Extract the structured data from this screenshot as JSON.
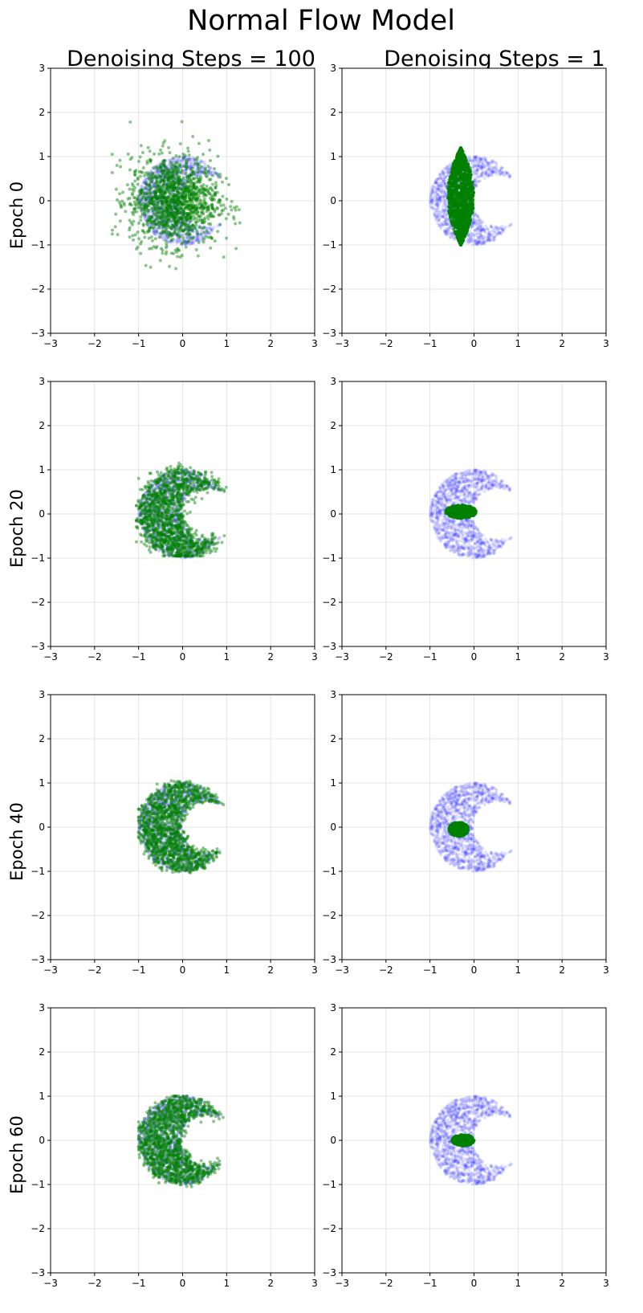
{
  "figure": {
    "title": "Normal Flow Model",
    "column_titles": [
      "Denoising Steps = 100",
      "Denoising Steps = 1"
    ],
    "row_labels": [
      "Epoch 0",
      "Epoch 20",
      "Epoch 40",
      "Epoch 60"
    ]
  },
  "colors": {
    "target": "#0000ff",
    "generated": "#008000",
    "grid": "#dddddd",
    "axes": "#000000"
  },
  "chart_data": {
    "type": "scatter",
    "layout": "4x2 grid of scatter subplots",
    "grid": true,
    "xlim": [
      -3,
      3
    ],
    "ylim": [
      -3,
      3
    ],
    "x_ticks": [
      -3,
      -2,
      -1,
      0,
      1,
      2,
      3
    ],
    "y_ticks": [
      -3,
      -2,
      -1,
      0,
      1,
      2,
      3
    ],
    "target_distribution": {
      "shape": "crescent",
      "outer_circle": {
        "cx": 0,
        "cy": 0,
        "r": 1.0
      },
      "inner_circle": {
        "cx": 0.55,
        "cy": 0,
        "r": 0.58
      },
      "x_range": [
        -1.0,
        0.85
      ],
      "y_range": [
        -1.0,
        1.0
      ]
    },
    "panels": [
      {
        "row": 0,
        "col": 0,
        "epoch": 0,
        "denoising_steps": 100,
        "generated": {
          "shape": "gaussian",
          "mean": [
            -0.2,
            0.0
          ],
          "std": [
            0.5,
            0.5
          ],
          "x_range": [
            -1.6,
            1.3
          ],
          "y_range": [
            -1.9,
            1.9
          ]
        }
      },
      {
        "row": 0,
        "col": 1,
        "epoch": 0,
        "denoising_steps": 1,
        "generated": {
          "shape": "leaf",
          "center": [
            -0.3,
            0.1
          ],
          "half_width": 0.3,
          "half_height": 1.1,
          "x_range": [
            -0.75,
            0.05
          ],
          "y_range": [
            -1.0,
            1.25
          ]
        }
      },
      {
        "row": 1,
        "col": 0,
        "epoch": 20,
        "denoising_steps": 100,
        "generated": {
          "shape": "crescent",
          "jitter": 0.09,
          "x_range": [
            -1.05,
            1.05
          ],
          "y_range": [
            -0.95,
            1.15
          ]
        }
      },
      {
        "row": 1,
        "col": 1,
        "epoch": 20,
        "denoising_steps": 1,
        "generated": {
          "shape": "blob",
          "center": [
            -0.3,
            0.05
          ],
          "radius_x": 0.35,
          "radius_y": 0.15,
          "x_range": [
            -0.5,
            0.2
          ],
          "y_range": [
            -0.15,
            0.25
          ]
        }
      },
      {
        "row": 2,
        "col": 0,
        "epoch": 40,
        "denoising_steps": 100,
        "generated": {
          "shape": "crescent",
          "jitter": 0.06,
          "x_range": [
            -1.0,
            0.95
          ],
          "y_range": [
            -1.1,
            1.05
          ]
        }
      },
      {
        "row": 2,
        "col": 1,
        "epoch": 40,
        "denoising_steps": 1,
        "generated": {
          "shape": "blob",
          "center": [
            -0.35,
            -0.05
          ],
          "radius_x": 0.22,
          "radius_y": 0.16,
          "x_range": [
            -0.55,
            -0.15
          ],
          "y_range": [
            -0.2,
            0.15
          ]
        }
      },
      {
        "row": 3,
        "col": 0,
        "epoch": 60,
        "denoising_steps": 100,
        "generated": {
          "shape": "crescent",
          "jitter": 0.05,
          "x_range": [
            -1.0,
            0.95
          ],
          "y_range": [
            -1.05,
            1.0
          ]
        }
      },
      {
        "row": 3,
        "col": 1,
        "epoch": 60,
        "denoising_steps": 1,
        "generated": {
          "shape": "blob",
          "center": [
            -0.25,
            0.0
          ],
          "radius_x": 0.25,
          "radius_y": 0.13,
          "x_range": [
            -0.45,
            0.0
          ],
          "y_range": [
            -0.15,
            0.15
          ]
        }
      }
    ]
  }
}
